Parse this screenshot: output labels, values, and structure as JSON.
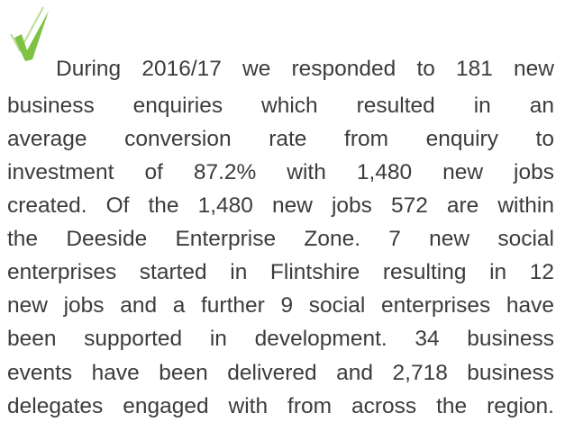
{
  "paragraph": {
    "lines": [
      "During 2016/17 we responded to 181 new",
      "business enquiries which resulted in an",
      "average  conversion rate from enquiry to",
      "investment of 87.2% with 1,480 new jobs",
      "created. Of the 1,480 new jobs 572 are within",
      "the Deeside Enterprise Zone.  7 new social",
      "enterprises started in Flintshire resulting in 12",
      "new jobs and a further 9 social enterprises have",
      "been supported in development. 34 business",
      "events have been delivered and 2,718 business",
      "delegates engaged with from across the region."
    ]
  }
}
